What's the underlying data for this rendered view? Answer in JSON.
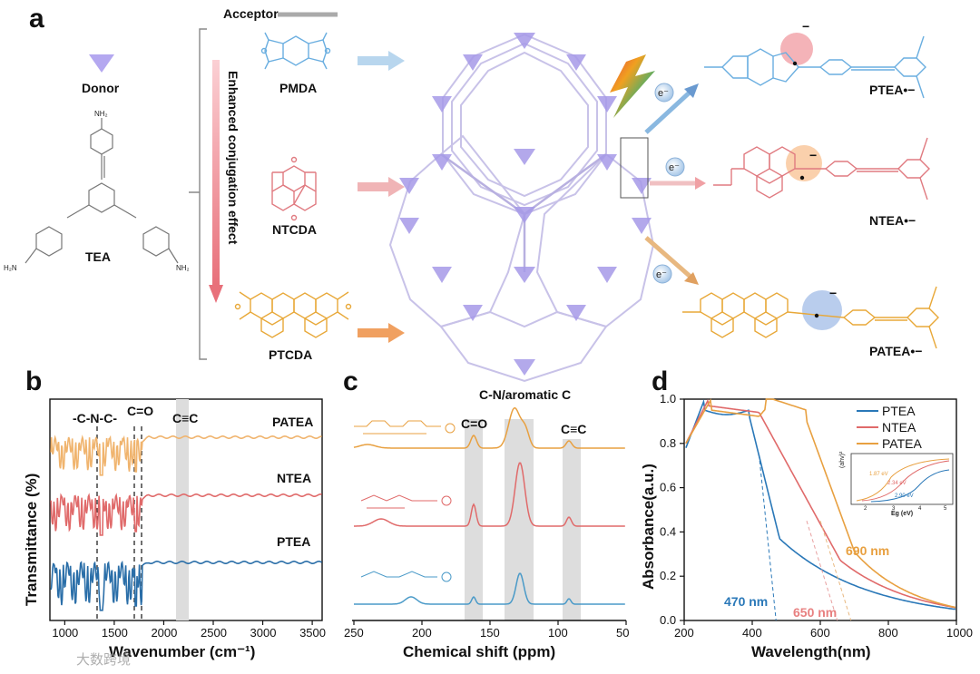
{
  "panel_labels": {
    "a": "a",
    "b": "b",
    "c": "c",
    "d": "d"
  },
  "panel_a": {
    "acceptor_label": "Acceptor",
    "donor_label": "Donor",
    "donor_name": "TEA",
    "conjugation_label": "Enhanced conjugation effect",
    "acceptors": [
      "PMDA",
      "NTCDA",
      "PTCDA"
    ],
    "products": [
      "PTEA•−",
      "NTEA•−",
      "PATEA•−"
    ],
    "electron_label": "e⁻",
    "nh2_label": "NH₂",
    "h2n_label": "H₂N",
    "n_label": "N",
    "o_label": "O",
    "minus_label": "−",
    "colors": {
      "pmda": "#6aaee0",
      "ntcda": "#e07a80",
      "ptcda": "#e8a838",
      "donor": "#a69ae8"
    }
  },
  "chart_data": [
    {
      "type": "line",
      "panel": "b",
      "xlabel": "Wavenumber (cm⁻¹)",
      "ylabel": "Transmittance (%)",
      "xlim": [
        850,
        3600
      ],
      "xticks": [
        1000,
        1500,
        2000,
        2500,
        3000,
        3500
      ],
      "tick_labels": [
        "1000",
        "1500",
        "2000",
        "2500",
        "3000",
        "3500"
      ],
      "annotations": [
        "-C-N-C-",
        "C=O",
        "C≡C"
      ],
      "series": [
        {
          "name": "PATEA",
          "color": "#f0b46e"
        },
        {
          "name": "NTEA",
          "color": "#e06a6a"
        },
        {
          "name": "PTEA",
          "color": "#2a6ea8"
        }
      ]
    },
    {
      "type": "line",
      "panel": "c",
      "xlabel": "Chemical shift (ppm)",
      "xlim": [
        250,
        50
      ],
      "xticks": [
        250,
        200,
        150,
        100,
        50
      ],
      "tick_labels": [
        "250",
        "200",
        "150",
        "100",
        "50"
      ],
      "annotations": [
        "C-N/aromatic C",
        "C=O",
        "C≡C"
      ],
      "series": [
        {
          "name": "PATEA",
          "color": "#e8a040"
        },
        {
          "name": "NTEA",
          "color": "#e06a6a"
        },
        {
          "name": "PTEA",
          "color": "#4a9ac8"
        }
      ]
    },
    {
      "type": "line",
      "panel": "d",
      "xlabel": "Wavelength(nm)",
      "ylabel": "Absorbance(a.u.)",
      "xlim": [
        200,
        1000
      ],
      "ylim": [
        0,
        1.0
      ],
      "xticks": [
        200,
        400,
        600,
        800,
        1000
      ],
      "yticks": [
        0.0,
        0.2,
        0.4,
        0.6,
        0.8,
        1.0
      ],
      "xtick_labels": [
        "200",
        "400",
        "600",
        "800",
        "1000"
      ],
      "ytick_labels": [
        "0.0",
        "0.2",
        "0.4",
        "0.6",
        "0.8",
        "1.0"
      ],
      "legend": [
        "PTEA",
        "NTEA",
        "PATEA"
      ],
      "edge_labels": [
        "470 nm",
        "650 nm",
        "690 nm"
      ],
      "series": [
        {
          "name": "PTEA",
          "color": "#2a78b8",
          "edge_nm": 470
        },
        {
          "name": "NTEA",
          "color": "#e06a6a",
          "edge_nm": 650
        },
        {
          "name": "PATEA",
          "color": "#e8a040",
          "edge_nm": 690
        }
      ],
      "inset": {
        "xlabel": "Eg (eV)",
        "ylabel": "(ahv)²",
        "labels": [
          "1.87 eV",
          "2.34 eV",
          "2.90 eV"
        ],
        "xtick_labels": [
          "2",
          "3",
          "4",
          "5"
        ]
      }
    }
  ],
  "watermark": "大数跨境"
}
